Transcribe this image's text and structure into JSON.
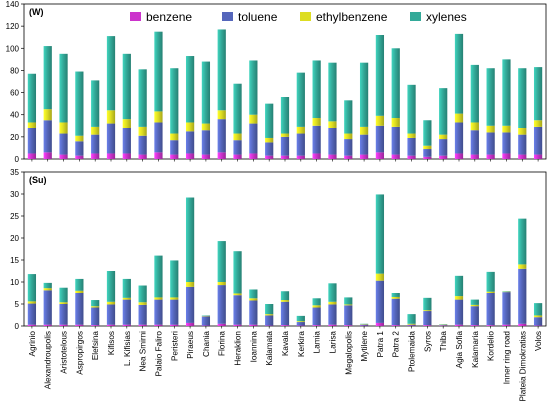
{
  "chart_data": {
    "type": "bar",
    "stacked": true,
    "categories": [
      "Agrinio",
      "Alexandroupolis",
      "Aristotelous",
      "Aspropirgos",
      "Elefsina",
      "Kifisos",
      "L. Kifisias",
      "Nea Smirni",
      "Palaio Faliro",
      "Peristeri",
      "Piraeus",
      "Chania",
      "Florina",
      "Heraklion",
      "Ioannina",
      "Kalamata",
      "Kavala",
      "Kerkira",
      "Lamia",
      "Larisa",
      "Megalopolis",
      "Mytilene",
      "Patra 1",
      "Patra 2",
      "Ptolemaida",
      "Syros",
      "Thiba",
      "Agia Sofia",
      "Kalamaria",
      "Kordelio",
      "Inner ring road",
      "Plateia Dimokratias",
      "Volos"
    ],
    "legend": {
      "position": "top",
      "items": [
        {
          "name": "benzene",
          "color": "#cc33cc"
        },
        {
          "name": "toluene",
          "color": "#5566bb"
        },
        {
          "name": "ethylbenzene",
          "color": "#dddd22"
        },
        {
          "name": "xylenes",
          "color": "#33aa99"
        }
      ]
    },
    "panels": [
      {
        "tag": "(W)",
        "ylim": [
          0,
          140
        ],
        "yticks": [
          0,
          20,
          40,
          60,
          80,
          100,
          120,
          140
        ],
        "grid": false,
        "series": [
          {
            "name": "benzene",
            "values": [
              5,
              6,
              4,
              3,
              5,
              5,
              5,
              4,
              6,
              4,
              5,
              4,
              6,
              4,
              5,
              3,
              3,
              3,
              5,
              4,
              3,
              4,
              6,
              4,
              3,
              2,
              3,
              5,
              4,
              4,
              5,
              4,
              4
            ]
          },
          {
            "name": "toluene",
            "values": [
              23,
              29,
              19,
              13,
              17,
              27,
              23,
              17,
              27,
              13,
              20,
              22,
              30,
              13,
              27,
              12,
              17,
              20,
              25,
              24,
              15,
              18,
              24,
              25,
              16,
              7,
              15,
              28,
              22,
              20,
              19,
              18,
              25
            ]
          },
          {
            "name": "ethylbenzene",
            "values": [
              5,
              10,
              10,
              5,
              7,
              12,
              8,
              8,
              10,
              6,
              8,
              6,
              8,
              6,
              8,
              4,
              3,
              6,
              7,
              6,
              5,
              7,
              9,
              8,
              4,
              3,
              4,
              8,
              7,
              6,
              6,
              6,
              6
            ]
          },
          {
            "name": "xylenes",
            "values": [
              44,
              57,
              62,
              58,
              42,
              67,
              59,
              52,
              72,
              59,
              60,
              56,
              73,
              45,
              49,
              31,
              33,
              49,
              52,
              53,
              30,
              58,
              73,
              63,
              44,
              23,
              42,
              72,
              52,
              52,
              60,
              54,
              48
            ]
          }
        ]
      },
      {
        "tag": "(Su)",
        "ylim": [
          0,
          35
        ],
        "yticks": [
          0,
          5,
          10,
          15,
          20,
          25,
          30,
          35
        ],
        "grid": false,
        "series": [
          {
            "name": "benzene",
            "values": [
              0.3,
              0.3,
              0.3,
              0.3,
              0.2,
              0.3,
              0.3,
              0.3,
              0.3,
              0.3,
              0.7,
              0.1,
              0.5,
              0.3,
              0.3,
              0.1,
              0.2,
              0.1,
              0.2,
              0.3,
              0.2,
              0.1,
              0.7,
              0.2,
              0.1,
              0.2,
              0.1,
              0.3,
              0.2,
              0.2,
              0.3,
              0.5,
              0.1
            ]
          },
          {
            "name": "toluene",
            "values": [
              4.8,
              7.8,
              4.7,
              7.2,
              4.0,
              4.6,
              5.7,
              4.5,
              5.7,
              5.7,
              8.2,
              2.1,
              8.8,
              6.7,
              5.5,
              2.3,
              5.3,
              0.8,
              4.0,
              4.6,
              4.5,
              0.2,
              9.6,
              6.0,
              0.2,
              3.2,
              0.1,
              5.7,
              4.3,
              7.3,
              7.4,
              12.5,
              1.9
            ]
          },
          {
            "name": "ethylbenzene",
            "values": [
              0.5,
              0.5,
              0.4,
              0.5,
              0.3,
              0.6,
              0.4,
              0.6,
              0.5,
              0.5,
              1.1,
              0.1,
              0.7,
              0.4,
              0.5,
              0.3,
              0.4,
              0.2,
              0.5,
              0.6,
              0.2,
              0.1,
              1.6,
              0.4,
              0.2,
              0.2,
              0.1,
              0.8,
              0.3,
              0.3,
              0.1,
              1.0,
              0.4
            ]
          },
          {
            "name": "xylenes",
            "values": [
              6.2,
              1.2,
              3.3,
              2.7,
              1.4,
              7.0,
              4.3,
              3.8,
              9.5,
              8.4,
              19.2,
              0.1,
              9.3,
              9.6,
              2.0,
              2.3,
              2.0,
              1.2,
              1.6,
              4.2,
              1.6,
              0.1,
              18.0,
              0.9,
              2.2,
              2.8,
              0.1,
              4.6,
              1.2,
              4.5,
              0.1,
              10.4,
              2.8
            ]
          }
        ]
      }
    ]
  }
}
